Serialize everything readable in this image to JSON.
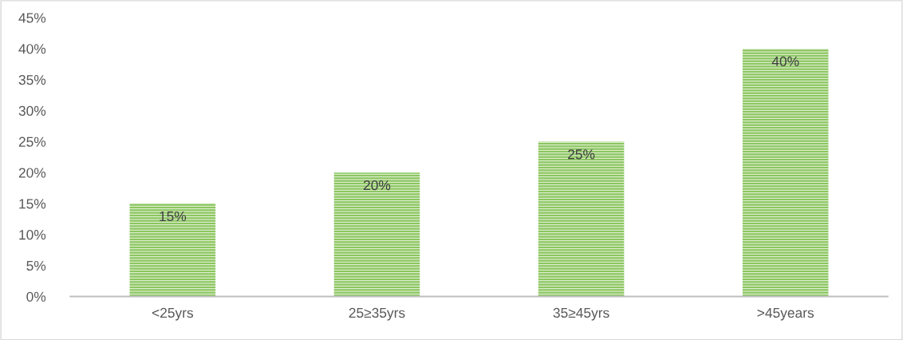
{
  "chart_data": {
    "type": "bar",
    "categories": [
      "<25yrs",
      "25≥35yrs",
      "35≥45yrs",
      ">45years"
    ],
    "values": [
      15,
      20,
      25,
      40
    ],
    "value_labels": [
      "15%",
      "20%",
      "25%",
      "40%"
    ],
    "color": "#8cc660",
    "ylim": [
      0,
      45
    ],
    "yticks": [
      {
        "value": 0,
        "label": "0%"
      },
      {
        "value": 5,
        "label": "5%"
      },
      {
        "value": 10,
        "label": "10%"
      },
      {
        "value": 15,
        "label": "15%"
      },
      {
        "value": 20,
        "label": "20%"
      },
      {
        "value": 25,
        "label": "25%"
      },
      {
        "value": 30,
        "label": "30%"
      },
      {
        "value": 35,
        "label": "35%"
      },
      {
        "value": 40,
        "label": "40%"
      },
      {
        "value": 45,
        "label": "45%"
      }
    ],
    "grid": false,
    "legend": false
  }
}
